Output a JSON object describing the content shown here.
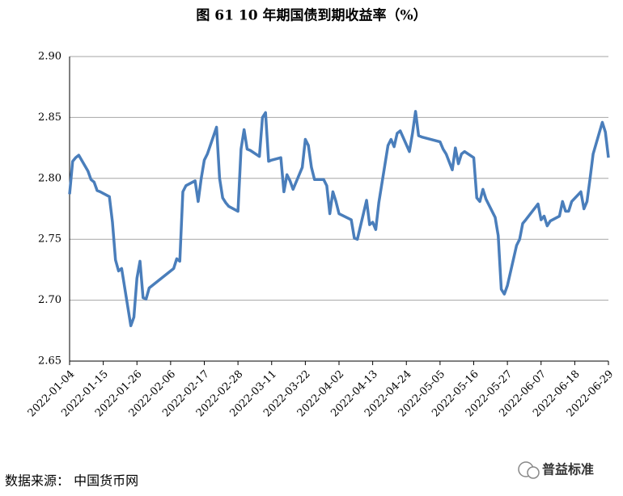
{
  "chart_data": {
    "type": "line",
    "title": "图 61 10 年期国债到期收益率（%）",
    "x": [
      "2022-01-04",
      "2022-01-05",
      "2022-01-06",
      "2022-01-07",
      "2022-01-10",
      "2022-01-11",
      "2022-01-12",
      "2022-01-13",
      "2022-01-14",
      "2022-01-17",
      "2022-01-18",
      "2022-01-19",
      "2022-01-20",
      "2022-01-21",
      "2022-01-24",
      "2022-01-25",
      "2022-01-26",
      "2022-01-27",
      "2022-01-28",
      "2022-01-29",
      "2022-01-30",
      "2022-02-07",
      "2022-02-08",
      "2022-02-09",
      "2022-02-10",
      "2022-02-11",
      "2022-02-14",
      "2022-02-15",
      "2022-02-16",
      "2022-02-17",
      "2022-02-18",
      "2022-02-21",
      "2022-02-22",
      "2022-02-23",
      "2022-02-24",
      "2022-02-25",
      "2022-02-28",
      "2022-03-01",
      "2022-03-02",
      "2022-03-03",
      "2022-03-04",
      "2022-03-07",
      "2022-03-08",
      "2022-03-09",
      "2022-03-10",
      "2022-03-11",
      "2022-03-14",
      "2022-03-15",
      "2022-03-16",
      "2022-03-17",
      "2022-03-18",
      "2022-03-21",
      "2022-03-22",
      "2022-03-23",
      "2022-03-24",
      "2022-03-25",
      "2022-03-28",
      "2022-03-29",
      "2022-03-30",
      "2022-03-31",
      "2022-04-01",
      "2022-04-02",
      "2022-04-06",
      "2022-04-07",
      "2022-04-08",
      "2022-04-11",
      "2022-04-12",
      "2022-04-13",
      "2022-04-14",
      "2022-04-15",
      "2022-04-18",
      "2022-04-19",
      "2022-04-20",
      "2022-04-21",
      "2022-04-22",
      "2022-04-25",
      "2022-04-26",
      "2022-04-27",
      "2022-04-28",
      "2022-04-29",
      "2022-05-05",
      "2022-05-06",
      "2022-05-07",
      "2022-05-09",
      "2022-05-10",
      "2022-05-11",
      "2022-05-12",
      "2022-05-13",
      "2022-05-16",
      "2022-05-17",
      "2022-05-18",
      "2022-05-19",
      "2022-05-20",
      "2022-05-23",
      "2022-05-24",
      "2022-05-25",
      "2022-05-26",
      "2022-05-27",
      "2022-05-30",
      "2022-05-31",
      "2022-06-01",
      "2022-06-02",
      "2022-06-06",
      "2022-06-07",
      "2022-06-08",
      "2022-06-09",
      "2022-06-10",
      "2022-06-13",
      "2022-06-14",
      "2022-06-15",
      "2022-06-16",
      "2022-06-17",
      "2022-06-20",
      "2022-06-21",
      "2022-06-22",
      "2022-06-23",
      "2022-06-24",
      "2022-06-27",
      "2022-06-28",
      "2022-06-29"
    ],
    "series": [
      {
        "color": "#4a7ebb",
        "values": [
          2.787,
          2.814,
          2.817,
          2.819,
          2.806,
          2.799,
          2.797,
          2.79,
          2.789,
          2.785,
          2.764,
          2.733,
          2.724,
          2.726,
          2.679,
          2.686,
          2.718,
          2.732,
          2.702,
          2.701,
          2.71,
          2.726,
          2.734,
          2.732,
          2.789,
          2.794,
          2.798,
          2.781,
          2.8,
          2.815,
          2.82,
          2.842,
          2.8,
          2.784,
          2.78,
          2.777,
          2.773,
          2.824,
          2.84,
          2.824,
          2.823,
          2.818,
          2.85,
          2.854,
          2.814,
          2.815,
          2.817,
          2.789,
          2.803,
          2.798,
          2.791,
          2.809,
          2.832,
          2.827,
          2.809,
          2.799,
          2.799,
          2.794,
          2.771,
          2.789,
          2.781,
          2.771,
          2.766,
          2.751,
          2.75,
          2.782,
          2.762,
          2.764,
          2.758,
          2.78,
          2.827,
          2.832,
          2.826,
          2.837,
          2.839,
          2.822,
          2.837,
          2.855,
          2.835,
          2.834,
          2.83,
          2.824,
          2.82,
          2.807,
          2.825,
          2.812,
          2.82,
          2.822,
          2.817,
          2.784,
          2.781,
          2.791,
          2.783,
          2.768,
          2.753,
          2.709,
          2.705,
          2.712,
          2.745,
          2.75,
          2.763,
          2.766,
          2.779,
          2.766,
          2.769,
          2.761,
          2.765,
          2.769,
          2.781,
          2.773,
          2.773,
          2.781,
          2.789,
          2.775,
          2.781,
          2.8,
          2.82,
          2.846,
          2.838,
          2.817
        ]
      }
    ],
    "xlim": [
      "2022-01-04",
      "2022-06-29"
    ],
    "xticks": [
      "2022-01-04",
      "2022-01-15",
      "2022-01-26",
      "2022-02-06",
      "2022-02-17",
      "2022-02-28",
      "2022-03-11",
      "2022-03-22",
      "2022-04-02",
      "2022-04-13",
      "2022-04-24",
      "2022-05-05",
      "2022-05-16",
      "2022-05-27",
      "2022-06-07",
      "2022-06-18",
      "2022-06-29"
    ],
    "ylim": [
      2.65,
      2.9
    ],
    "yticks": [
      2.65,
      {
        "value": 2.7,
        "label": "2.70"
      },
      2.75,
      {
        "value": 2.8,
        "label": "2.80"
      },
      2.85,
      {
        "value": 2.9,
        "label": "2.90"
      }
    ],
    "grid": true
  },
  "source": "数据来源：  中国货币网",
  "watermark": "普益标准"
}
